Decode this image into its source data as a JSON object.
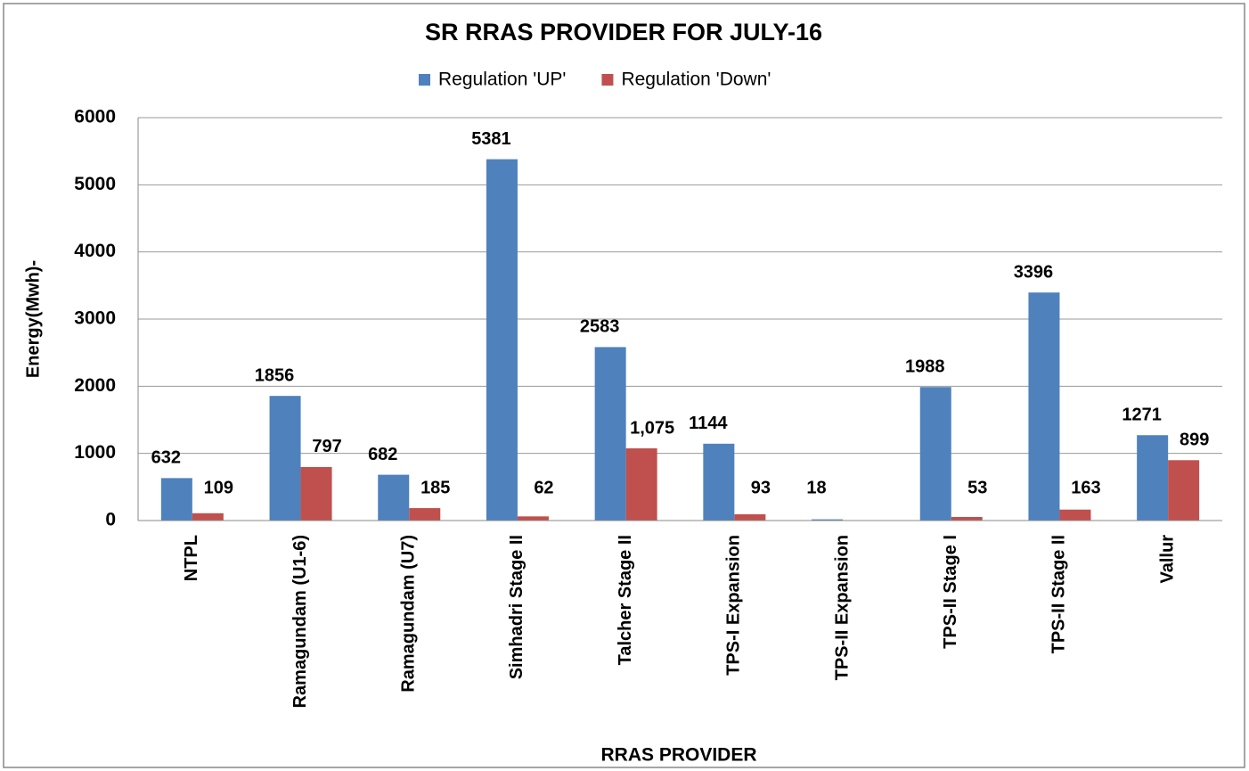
{
  "chart_data": {
    "type": "bar",
    "title": "SR RRAS PROVIDER FOR JULY-16",
    "x_label": "RRAS PROVIDER",
    "y_label": "Energy(Mwh)-",
    "categories": [
      "NTPL",
      "Ramagundam (U1-6)",
      "Ramagundam (U7)",
      "Simhadri Stage II",
      "Talcher Stage II",
      "TPS-I Expansion",
      "TPS-II Expansion",
      "TPS-II Stage I",
      "TPS-II Stage II",
      "Vallur"
    ],
    "series": [
      {
        "name": "Regulation 'UP'",
        "color": "#4f81bd",
        "values": [
          632,
          1856,
          682,
          5381,
          2583,
          1144,
          18,
          1988,
          3396,
          1271
        ]
      },
      {
        "name": "Regulation 'Down'",
        "color": "#c0504d",
        "values": [
          109,
          797,
          185,
          62,
          1075,
          93,
          null,
          53,
          163,
          899
        ],
        "value_labels": [
          "109",
          "797",
          "185",
          "62",
          "1,075",
          "93",
          null,
          "53",
          "163",
          "899"
        ]
      }
    ],
    "ylim": [
      0,
      6000
    ],
    "yticks": [
      0,
      1000,
      2000,
      3000,
      4000,
      5000,
      6000
    ],
    "grid": true,
    "legend": "top"
  }
}
